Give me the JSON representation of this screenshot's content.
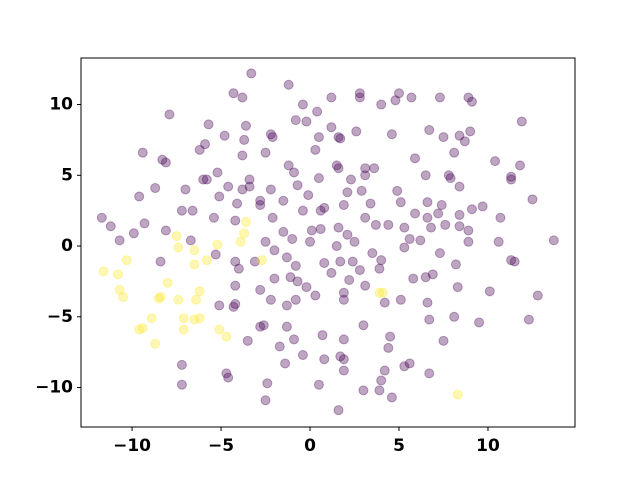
{
  "chart_data": {
    "type": "scatter",
    "xlim": [
      -12.87,
      14.89
    ],
    "ylim": [
      -12.79,
      13.29
    ],
    "xticks": [
      {
        "value": -10,
        "label": "−10"
      },
      {
        "value": -5,
        "label": "−5"
      },
      0,
      5,
      10
    ],
    "yticks": [
      {
        "value": -10,
        "label": "−10"
      },
      {
        "value": -5,
        "label": "−5"
      },
      0,
      5,
      10
    ],
    "grid": false,
    "series": [
      {
        "color": "#440154",
        "x": [
          -3.3,
          -1.2,
          -4.3,
          -3.8,
          1.2,
          2.8,
          2.8,
          5.0,
          4.8,
          5.7,
          7.3,
          8.9,
          9.1,
          4.0,
          -0.4,
          0.4,
          -7.9,
          -5.7,
          11.9,
          -3.6,
          -0.8,
          -0.2,
          1.2,
          -3.7,
          -4.8,
          -2.2,
          -2.1,
          0.5,
          1.7,
          1.6,
          2.6,
          4.6,
          6.7,
          7.5,
          9.0,
          8.4,
          8.7,
          0.3,
          -5.9,
          -6.2,
          -9.4,
          -8.3,
          -8.1,
          -3.8,
          -2.5,
          8.1,
          5.9,
          10.4,
          11.8,
          -1.2,
          -0.9,
          1.5,
          1.6,
          3.1,
          3.6,
          3.1,
          2.3,
          0.5,
          -5.2,
          -6.0,
          -5.8,
          -7.0,
          -8.7,
          -3.4,
          -3.4,
          -4.6,
          -3.8,
          -2.2,
          -0.7,
          -0.1,
          2.1,
          2.9,
          4.9,
          6.5,
          7.8,
          7.9,
          11.3,
          11.3,
          8.4,
          12.5,
          7.4,
          6.6,
          5.1,
          3.4,
          1.9,
          -5.1,
          -9.6,
          -2.8,
          -1.5,
          -2.8,
          -4.1,
          -7.2,
          -6.6,
          -5.4,
          -4.2,
          -2.1,
          -0.4,
          0.6,
          0.8,
          3.1,
          5.9,
          6.6,
          7.2,
          8.4,
          9.1,
          9.7,
          10.7,
          -11.7,
          -11.2,
          -9.3,
          -10.7,
          -9.9,
          -8.1,
          -6.7,
          -1.5,
          -1.0,
          0.1,
          0.6,
          2.1,
          1.6,
          3.7,
          4.4,
          5.3,
          6.8,
          7.6,
          8.4,
          8.9,
          10.6,
          8.9,
          13.7,
          5.6,
          6.2,
          5.3,
          2.5,
          1.5,
          0.0,
          -2.5,
          -2.0,
          -4.2,
          -5.3,
          -8.4,
          -4.0,
          -3.1,
          -1.3,
          -0.8,
          0.8,
          1.7,
          2.4,
          3.5,
          3.9,
          4.0,
          5.8,
          6.5,
          6.9,
          8.2,
          7.3,
          11.3,
          11.5,
          -2.0,
          -1.1,
          -0.7,
          -0.2,
          1.2,
          2.8,
          3.1,
          2.2,
          -4.2,
          -2.8,
          -2.2,
          -0.8,
          0.3,
          1.9,
          1.9,
          5.1,
          6.6,
          8.3,
          10.1,
          12.8,
          -4.2,
          -4.3,
          -5.1,
          -1.3,
          4.2,
          8.1,
          6.7,
          9.5,
          12.3,
          -2.6,
          -2.8,
          -1.3,
          3.0,
          0.7,
          4.5,
          7.5,
          -3.5,
          -0.9,
          1.9,
          4.4,
          -1.7,
          -0.4,
          0.8,
          1.7,
          1.9,
          -7.2,
          -1.4,
          5.3,
          5.6,
          1.9,
          4.2,
          6.7,
          -4.7,
          -4.6,
          4.0,
          -2.4,
          0.5,
          -7.2,
          3.0,
          -2.5,
          4.6,
          1.6,
          3.9
        ],
        "values": [
          12.2,
          11.4,
          10.8,
          10.5,
          10.5,
          10.5,
          10.8,
          10.8,
          10.3,
          10.5,
          10.5,
          10.5,
          10.2,
          10.0,
          10.0,
          9.5,
          9.3,
          8.6,
          8.8,
          8.5,
          8.9,
          8.8,
          8.4,
          7.5,
          7.8,
          7.9,
          7.7,
          7.7,
          7.6,
          7.7,
          8.1,
          7.9,
          8.2,
          7.7,
          8.1,
          7.8,
          7.4,
          6.8,
          7.2,
          6.8,
          6.6,
          6.1,
          5.9,
          6.4,
          6.6,
          6.6,
          6.2,
          6.0,
          5.7,
          5.7,
          5.2,
          5.7,
          5.5,
          5.5,
          5.5,
          5.0,
          4.7,
          4.8,
          5.2,
          4.7,
          4.7,
          4.0,
          4.1,
          4.7,
          4.2,
          4.2,
          4.0,
          4.0,
          4.3,
          3.6,
          3.8,
          3.9,
          3.9,
          5.0,
          5.0,
          4.8,
          4.9,
          4.7,
          4.2,
          3.3,
          2.9,
          3.1,
          3.1,
          3.0,
          2.9,
          3.5,
          3.5,
          3.2,
          3.2,
          2.9,
          3.0,
          2.5,
          2.5,
          2.0,
          1.8,
          2.0,
          2.5,
          2.5,
          2.7,
          2.0,
          2.3,
          2.0,
          2.3,
          2.2,
          2.6,
          2.8,
          2.0,
          2.0,
          1.4,
          1.6,
          0.4,
          0.9,
          1.1,
          0.4,
          1.0,
          0.5,
          1.1,
          1.2,
          0.8,
          1.3,
          1.5,
          1.5,
          1.3,
          1.3,
          1.5,
          1.4,
          1.1,
          0.3,
          0.3,
          0.4,
          0.5,
          0.4,
          -0.1,
          0.3,
          0.0,
          0.3,
          0.3,
          -0.3,
          -1.1,
          -0.6,
          -1.1,
          -1.6,
          -1.1,
          -0.8,
          -1.4,
          -1.2,
          -1.1,
          -1.1,
          -0.5,
          -1.6,
          -1.0,
          -2.3,
          -2.2,
          -2.0,
          -1.3,
          -0.5,
          -1.0,
          -1.1,
          -2.3,
          -2.2,
          -2.5,
          -2.9,
          -1.9,
          -1.7,
          -2.8,
          -2.4,
          -2.8,
          -3.1,
          -3.8,
          -3.8,
          -3.5,
          -3.3,
          -3.8,
          -3.8,
          -4.0,
          -2.9,
          -3.2,
          -3.5,
          -4.1,
          -4.3,
          -4.2,
          -4.2,
          -4.0,
          -5.0,
          -5.2,
          -5.4,
          -5.2,
          -5.6,
          -5.7,
          -5.7,
          -5.6,
          -6.3,
          -6.4,
          -6.7,
          -6.7,
          -6.6,
          -6.6,
          -7.2,
          -7.1,
          -7.7,
          -8.0,
          -7.8,
          -8.0,
          -8.4,
          -8.3,
          -8.5,
          -8.3,
          -8.8,
          -8.8,
          -9.0,
          -9.0,
          -9.3,
          -9.5,
          -9.7,
          -9.8,
          -9.8,
          -10.2,
          -10.9,
          -10.7,
          -11.6,
          -10.2
        ]
      },
      {
        "color": "#fde725",
        "x": [
          -11.6,
          -10.8,
          -10.3,
          -10.7,
          -10.5,
          -8.5,
          -8.4,
          -8.0,
          -7.5,
          -7.4,
          -6.5,
          -6.5,
          -5.8,
          -5.2,
          -3.6,
          -3.7,
          -3.9,
          -8.9,
          -9.4,
          -9.6,
          -8.7,
          -7.1,
          -7.1,
          -6.5,
          -6.2,
          -6.2,
          -6.4,
          -5.1,
          -4.7,
          3.9,
          4.1,
          8.3,
          -7.4,
          -2.7
        ],
        "values": [
          -1.8,
          -2.0,
          -1.0,
          -3.1,
          -3.6,
          -3.7,
          -3.6,
          -2.6,
          0.7,
          -0.1,
          -0.3,
          -1.3,
          -1.0,
          0.1,
          1.7,
          0.9,
          0.3,
          -5.1,
          -5.8,
          -5.9,
          -6.9,
          -5.1,
          -5.9,
          -5.2,
          -5.1,
          -3.2,
          -3.8,
          -5.9,
          -6.4,
          -3.3,
          -3.3,
          -10.5,
          -3.8,
          -1.0
        ]
      }
    ]
  }
}
